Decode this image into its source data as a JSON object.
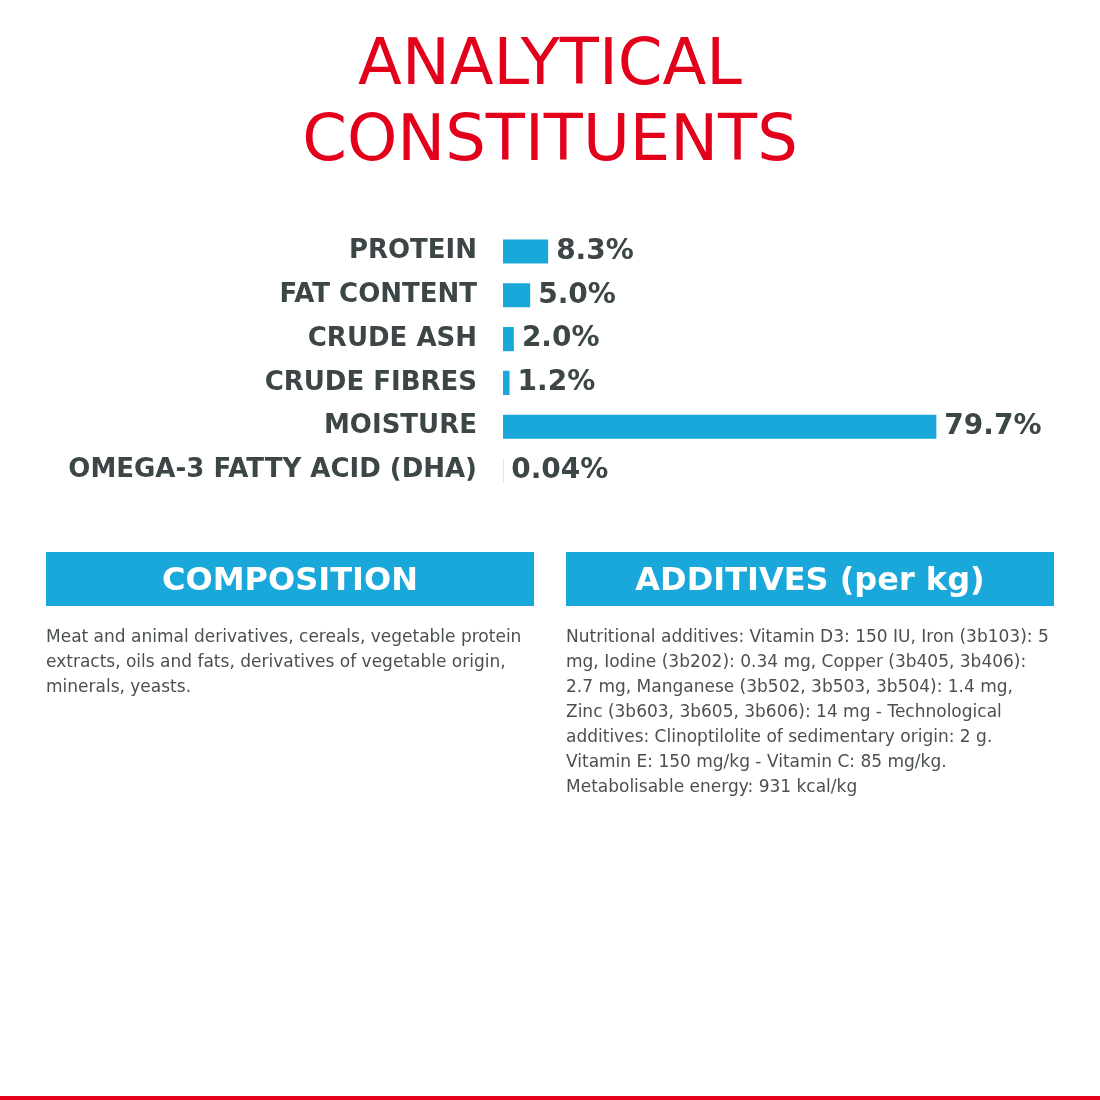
{
  "chart_data": [
    {
      "type": "bar",
      "title": "ANALYTICAL CONSTITUENTS",
      "orientation": "horizontal",
      "categories": [
        "PROTEIN",
        "FAT CONTENT",
        "CRUDE ASH",
        "CRUDE FIBRES",
        "MOISTURE",
        "OMEGA-3 FATTY ACID (DHA)"
      ],
      "values": [
        8.3,
        5.0,
        2.0,
        1.2,
        79.7,
        0.04
      ],
      "value_labels": [
        "8.3%",
        "5.0%",
        "2.0%",
        "1.2%",
        "79.7%",
        "0.04%"
      ],
      "color": "#1aa8db"
    },
    {
      "type": "other",
      "title": "COMPOSITION",
      "annotations": [
        "Meat and animal derivatives, cereals, vegetable protein extracts, oils and fats, derivatives of vegetable origin, minerals, yeasts."
      ]
    },
    {
      "type": "other",
      "title": "ADDITIVES (per kg)",
      "annotations": [
        "Nutritional additives: Vitamin D3: 150 IU, Iron (3b103): 5 mg, Iodine (3b202): 0.34 mg, Copper (3b405, 3b406): 2.7 mg, Manganese (3b502, 3b503, 3b504): 1.4 mg, Zinc (3b603, 3b605, 3b606): 14 mg - Technological additives: Clinoptilolite of sedimentary origin: 2 g. Vitamin E: 150 mg/kg - Vitamin C: 85 mg/kg. Metabolisable energy: 931 kcal/kg"
      ]
    }
  ]
}
